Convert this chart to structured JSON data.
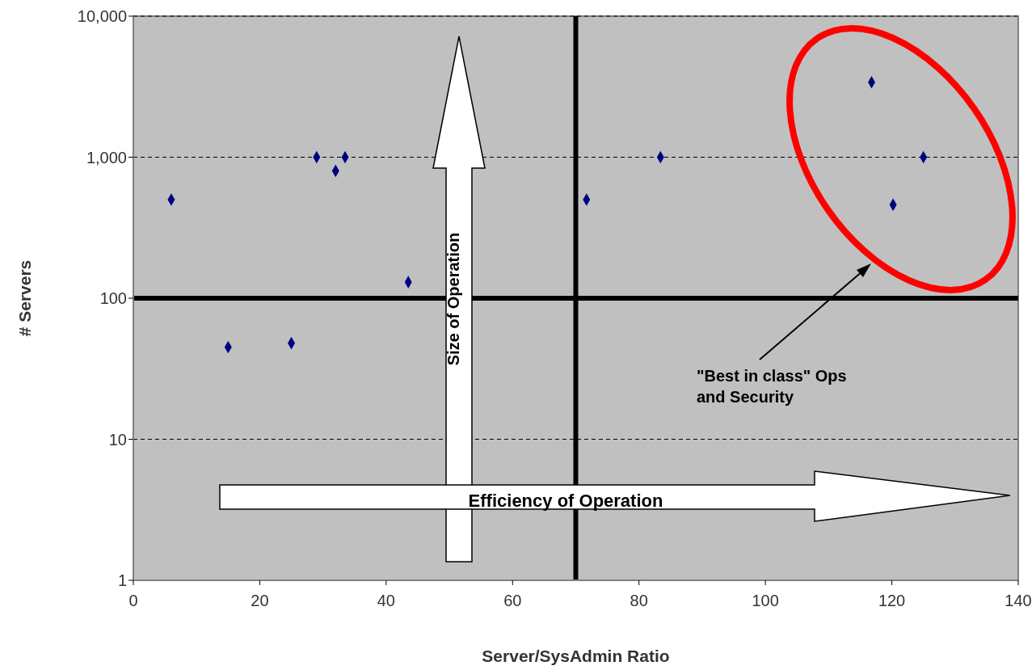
{
  "chart_data": {
    "type": "scatter",
    "xlabel": "Server/SysAdmin Ratio",
    "ylabel": "# Servers",
    "x": [
      6,
      15,
      25,
      29,
      32,
      33.5,
      43.5,
      71.7,
      83.4,
      116.8,
      125,
      120.2
    ],
    "values": [
      500,
      45,
      48,
      1000,
      800,
      1000,
      130,
      500,
      1000,
      3400,
      1000,
      460
    ],
    "color": "#000080",
    "marker": "diamond",
    "log": "y",
    "grid": "y",
    "xlim": [
      0,
      140
    ],
    "xticks": [
      0,
      20,
      40,
      60,
      80,
      100,
      120,
      140
    ],
    "ylim": [
      1,
      10000
    ],
    "yticks": [
      1,
      10,
      100,
      {
        "value": 1000,
        "label": "1,000"
      },
      {
        "value": 10000,
        "label": "10,000"
      }
    ],
    "ref_lines": [
      {
        "axis": "x",
        "value": 70,
        "color": "#000000"
      },
      {
        "axis": "y",
        "value": 100,
        "color": "#000000"
      }
    ],
    "annotations": [
      "Size of Operation",
      "Efficiency of Operation",
      "\"Best in class\" Ops and Security"
    ]
  }
}
